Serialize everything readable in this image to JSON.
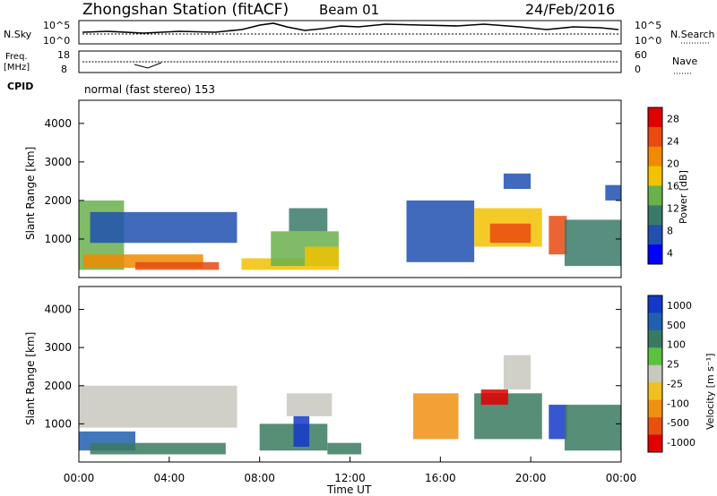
{
  "header": {
    "title": "Zhongshan Station (fitACF)",
    "beam": "Beam 01",
    "date": "24/Feb/2016"
  },
  "aux_panels": {
    "nsky": {
      "label": "N.Sky",
      "ticks": [
        "10^5",
        "10^0"
      ],
      "right_label": "N.Search",
      "right_ticks": [
        "10^5",
        "10^0"
      ]
    },
    "freq": {
      "label_line1": "Freq.",
      "label_line2": "[MHz]",
      "ticks": [
        "18",
        "8"
      ],
      "right_label": "Nave",
      "right_ticks": [
        "60",
        "0"
      ]
    },
    "cpid": {
      "label": "CPID",
      "text": "normal (fast stereo) 153"
    }
  },
  "colors": {
    "power_scale": [
      "#0000ff",
      "#2050b0",
      "#3a7a68",
      "#6ab04c",
      "#f2c200",
      "#f08a00",
      "#e84a10",
      "#e00000"
    ],
    "velocity_scale": [
      "#1438c8",
      "#2060b0",
      "#3a7a60",
      "#5cc040",
      "#c8c8c0",
      "#f0c020",
      "#f09010",
      "#e85010",
      "#e00000"
    ]
  },
  "chart_data": [
    {
      "type": "heatmap",
      "panel": "power",
      "ylabel": "Slant Range [km]",
      "ylim": [
        0,
        4600
      ],
      "yticks": [
        1000,
        2000,
        3000,
        4000
      ],
      "xlim": [
        0,
        24
      ],
      "colorbar": {
        "label": "Power [dB]",
        "ticks": [
          4,
          8,
          12,
          16,
          20,
          24,
          28
        ],
        "range": [
          0,
          32
        ]
      },
      "regions": [
        {
          "x0": 0.0,
          "x1": 2.0,
          "y0": 200,
          "y1": 2000,
          "c": 3
        },
        {
          "x0": 0.2,
          "x1": 5.5,
          "y0": 250,
          "y1": 600,
          "c": 5
        },
        {
          "x0": 2.5,
          "x1": 6.2,
          "y0": 200,
          "y1": 400,
          "c": 6
        },
        {
          "x0": 0.5,
          "x1": 7.0,
          "y0": 900,
          "y1": 1700,
          "c": 1
        },
        {
          "x0": 7.2,
          "x1": 10.0,
          "y0": 200,
          "y1": 500,
          "c": 4
        },
        {
          "x0": 8.5,
          "x1": 11.5,
          "y0": 300,
          "y1": 1200,
          "c": 3
        },
        {
          "x0": 9.3,
          "x1": 11.0,
          "y0": 1200,
          "y1": 1800,
          "c": 2
        },
        {
          "x0": 10.0,
          "x1": 11.5,
          "y0": 200,
          "y1": 800,
          "c": 4
        },
        {
          "x0": 14.5,
          "x1": 17.5,
          "y0": 400,
          "y1": 2000,
          "c": 1
        },
        {
          "x0": 17.5,
          "x1": 20.5,
          "y0": 800,
          "y1": 1800,
          "c": 4
        },
        {
          "x0": 18.2,
          "x1": 20.0,
          "y0": 900,
          "y1": 1400,
          "c": 6
        },
        {
          "x0": 18.8,
          "x1": 20.0,
          "y0": 2300,
          "y1": 2700,
          "c": 1
        },
        {
          "x0": 20.8,
          "x1": 21.6,
          "y0": 600,
          "y1": 1600,
          "c": 6
        },
        {
          "x0": 21.5,
          "x1": 24.0,
          "y0": 300,
          "y1": 1500,
          "c": 2
        },
        {
          "x0": 23.3,
          "x1": 24.0,
          "y0": 2000,
          "y1": 2400,
          "c": 1
        }
      ]
    },
    {
      "type": "heatmap",
      "panel": "velocity",
      "ylabel": "Slant Range [km]",
      "ylim": [
        0,
        4600
      ],
      "yticks": [
        1000,
        2000,
        3000,
        4000
      ],
      "xlim": [
        0,
        24
      ],
      "xlabel": "Time UT",
      "xticks": [
        "00:00",
        "04:00",
        "08:00",
        "12:00",
        "16:00",
        "20:00",
        "00:00"
      ],
      "colorbar": {
        "label": "Velocity [m s⁻¹]",
        "ticks": [
          1000,
          500,
          100,
          25,
          -25,
          -100,
          -500,
          -1000
        ]
      },
      "regions": [
        {
          "x0": 0.0,
          "x1": 7.0,
          "y0": 900,
          "y1": 2000,
          "c": 4
        },
        {
          "x0": 0.0,
          "x1": 2.5,
          "y0": 300,
          "y1": 800,
          "c": 1
        },
        {
          "x0": 0.5,
          "x1": 6.5,
          "y0": 200,
          "y1": 500,
          "c": 2
        },
        {
          "x0": 8.0,
          "x1": 11.0,
          "y0": 300,
          "y1": 1000,
          "c": 2
        },
        {
          "x0": 9.2,
          "x1": 11.2,
          "y0": 1200,
          "y1": 1800,
          "c": 4
        },
        {
          "x0": 9.5,
          "x1": 10.2,
          "y0": 400,
          "y1": 1200,
          "c": 0
        },
        {
          "x0": 11.0,
          "x1": 12.5,
          "y0": 200,
          "y1": 500,
          "c": 2
        },
        {
          "x0": 14.8,
          "x1": 16.8,
          "y0": 600,
          "y1": 1800,
          "c": 6
        },
        {
          "x0": 17.5,
          "x1": 20.5,
          "y0": 600,
          "y1": 1800,
          "c": 2
        },
        {
          "x0": 17.8,
          "x1": 19.0,
          "y0": 1500,
          "y1": 1900,
          "c": 8
        },
        {
          "x0": 18.8,
          "x1": 20.0,
          "y0": 1900,
          "y1": 2800,
          "c": 4
        },
        {
          "x0": 20.8,
          "x1": 21.6,
          "y0": 600,
          "y1": 1500,
          "c": 0
        },
        {
          "x0": 21.5,
          "x1": 24.0,
          "y0": 300,
          "y1": 1500,
          "c": 2
        }
      ]
    }
  ],
  "axis_label_xunit": "Time UT"
}
